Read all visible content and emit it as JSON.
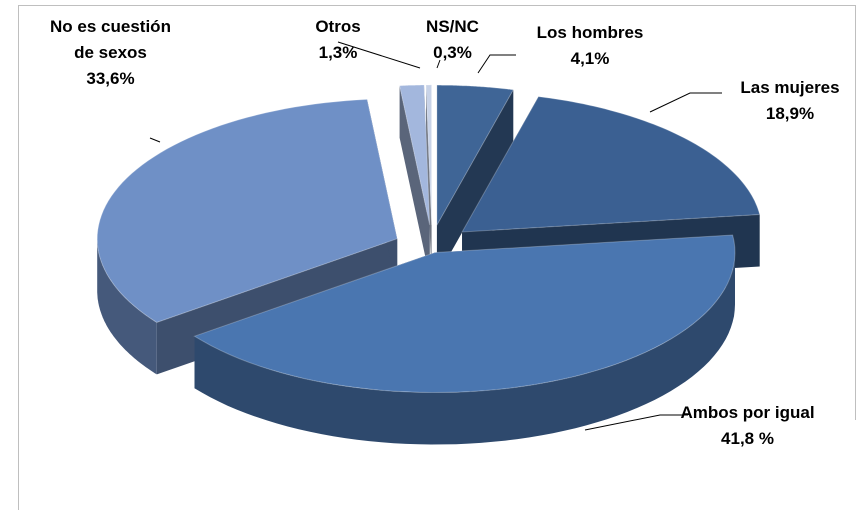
{
  "chart_data": {
    "type": "pie3d",
    "categories": [
      "Los hombres",
      "Las mujeres",
      "Ambos por igual",
      "No es cuestión de sexos",
      "Otros",
      "NS/NC"
    ],
    "values": [
      4.1,
      18.9,
      41.8,
      33.6,
      1.3,
      0.3
    ],
    "value_labels": [
      "4,1%",
      "18,9%",
      "41,8 %",
      "33,6%",
      "1,3%",
      "0,3%"
    ],
    "colors": [
      "#3f6596",
      "#3b6092",
      "#4a76b0",
      "#6f90c6",
      "#a3b7dd",
      "#c8d3e8"
    ]
  }
}
